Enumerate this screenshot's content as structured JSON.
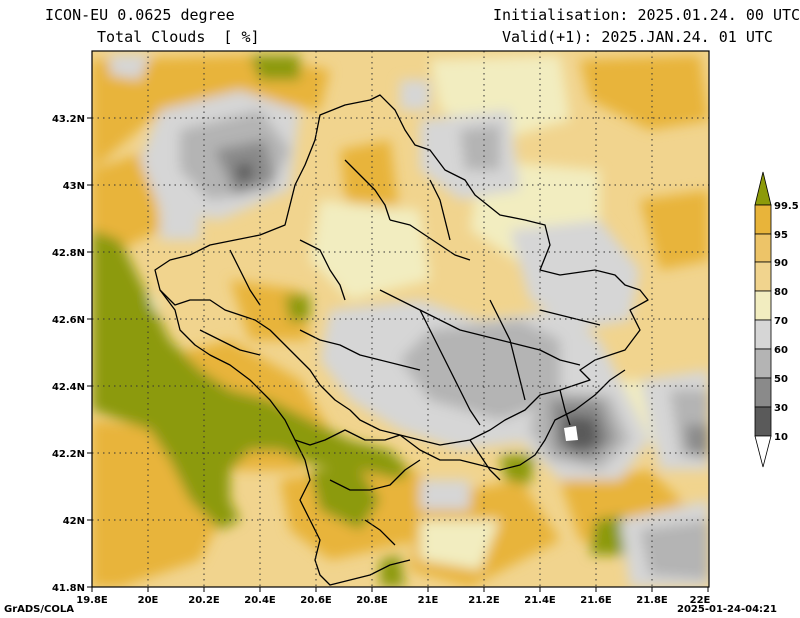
{
  "header": {
    "model_line": "ICON-EU 0.0625 degree",
    "field_line": "Total Clouds  [ %]",
    "init_line": "Initialisation: 2025.01.24. 00 UTC",
    "valid_line": "Valid(+1): 2025.JAN.24. 01 UTC"
  },
  "axes": {
    "lon_ticks": [
      "19.8E",
      "20E",
      "20.2E",
      "20.4E",
      "20.6E",
      "20.8E",
      "21E",
      "21.2E",
      "21.4E",
      "21.6E",
      "21.8E",
      "22E"
    ],
    "lat_ticks": [
      "43.2N",
      "43N",
      "42.8N",
      "42.6N",
      "42.4N",
      "42.2N",
      "42N",
      "41.8N"
    ]
  },
  "colorbar": {
    "labels": [
      "99.5",
      "95",
      "90",
      "80",
      "70",
      "60",
      "50",
      "30",
      "10"
    ],
    "colors": [
      "#8c9a0a",
      "#e8b43a",
      "#edc468",
      "#f1d48e",
      "#f2edc0",
      "#d6d6d6",
      "#b4b4b4",
      "#8a8a8a",
      "#5a5a5a",
      "#ffffff"
    ]
  },
  "footer": {
    "left": "GrADS/COLA",
    "right": "2025-01-24-04:21"
  }
}
